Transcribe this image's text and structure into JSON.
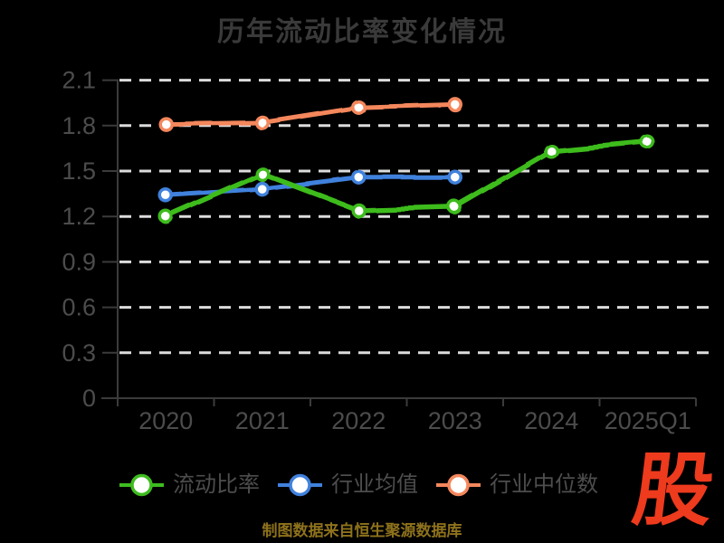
{
  "title": "历年流动比率变化情况",
  "footer": {
    "source_note": "制图数据来自恒生聚源数据库"
  },
  "logo": {
    "text": "股",
    "color": "#ee3a1d"
  },
  "colors": {
    "background": "#000000",
    "grid": "#dcdcdc",
    "axis": "#3b3b3b",
    "tick_label": "#4c4c4c",
    "title": "#3a3a3a",
    "legend_label": "#4d4d4d",
    "footer": "#8e721c",
    "marker_fill": "#ffffff"
  },
  "chart_data": {
    "type": "line",
    "title": "历年流动比率变化情况",
    "categories": [
      "2020",
      "2021",
      "2022",
      "2023",
      "2024",
      "2025Q1"
    ],
    "series": [
      {
        "key": "current-ratio",
        "name": "流动比率",
        "color": "#3ebc1f",
        "values": [
          1.2,
          1.48,
          1.24,
          1.26,
          1.63,
          1.69
        ]
      },
      {
        "key": "industry-mean",
        "name": "行业均值",
        "color": "#4181dd",
        "values": [
          1.34,
          1.38,
          1.46,
          1.46,
          null,
          null
        ]
      },
      {
        "key": "industry-median",
        "name": "行业中位数",
        "color": "#f4875c",
        "values": [
          1.81,
          1.82,
          1.92,
          1.94,
          null,
          null
        ]
      }
    ],
    "xlabel": "",
    "ylabel": "",
    "ylim": [
      0,
      2.1
    ],
    "yticks": [
      0,
      0.3,
      0.6,
      0.9,
      1.2,
      1.5,
      1.8,
      2.1
    ],
    "grid": "horizontal-dashed",
    "legend_position": "bottom",
    "line_style": "hand-drawn"
  }
}
